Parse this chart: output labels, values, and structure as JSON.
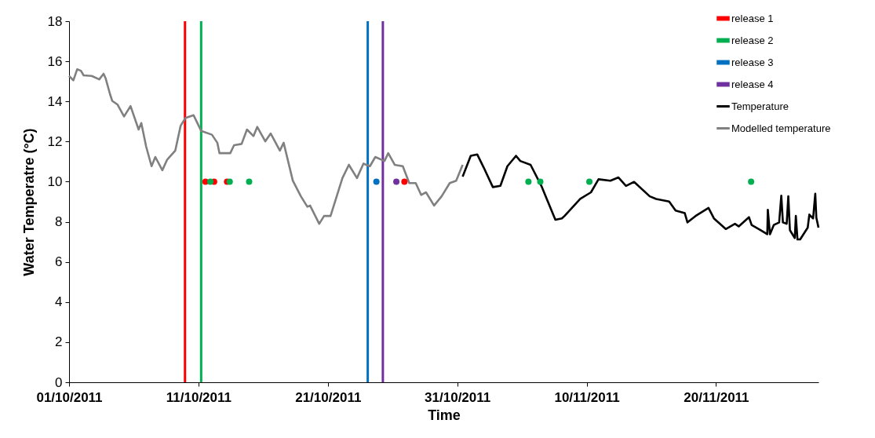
{
  "chart_data": {
    "type": "line",
    "xlabel": "Time",
    "ylabel": "Water Temperatre (°C)",
    "xlim": [
      "2011-10-01",
      "2011-11-27T22:00"
    ],
    "xticks": [
      {
        "value": "2011-10-01",
        "label": "01/10/2011"
      },
      {
        "value": "2011-10-11",
        "label": "11/10/2011"
      },
      {
        "value": "2011-10-21",
        "label": "21/10/2011"
      },
      {
        "value": "2011-10-31",
        "label": "31/10/2011"
      },
      {
        "value": "2011-11-10",
        "label": "10/11/2011"
      },
      {
        "value": "2011-11-20",
        "label": "20/11/2011"
      }
    ],
    "ylim": [
      0,
      18
    ],
    "yticks": [
      0,
      2,
      4,
      6,
      8,
      10,
      12,
      14,
      16,
      18
    ],
    "grid": false,
    "legend": "top right",
    "ref_lines": [
      {
        "axis": "x",
        "value": "2011-10-09T23:00",
        "color": "#ff0000"
      },
      {
        "axis": "x",
        "value": "2011-10-11T05:00",
        "color": "#00b050"
      },
      {
        "axis": "x",
        "value": "2011-10-24T02:00",
        "color": "#0070c0"
      },
      {
        "axis": "x",
        "value": "2011-10-25T06:00",
        "color": "#7030a0"
      }
    ],
    "series": [
      {
        "name": "release 1",
        "type": "scatter",
        "marker": "circle",
        "color": "#ff0000",
        "x": [
          "2011-10-11T13:00",
          "2011-10-12T05:00",
          "2011-10-13T05:00",
          "2011-10-26T22:00"
        ],
        "values": [
          10,
          10,
          10,
          10
        ]
      },
      {
        "name": "release 2",
        "type": "scatter",
        "marker": "circle",
        "color": "#00b050",
        "x": [
          "2011-10-11T22:00",
          "2011-10-13T10:00",
          "2011-10-14T22:00",
          "2011-11-05T12:00",
          "2011-11-06T10:00",
          "2011-11-10T05:00",
          "2011-11-22T17:00"
        ],
        "values": [
          10,
          10,
          10,
          10,
          10,
          10,
          10
        ]
      },
      {
        "name": "release 3",
        "type": "scatter",
        "marker": "circle",
        "color": "#0070c0",
        "x": [
          "2011-10-24T18:00"
        ],
        "values": [
          10
        ]
      },
      {
        "name": "release 4",
        "type": "scatter",
        "marker": "circle",
        "color": "#7030a0",
        "x": [
          "2011-10-26T07:00"
        ],
        "values": [
          10
        ]
      },
      {
        "name": "Temperature",
        "type": "line",
        "color": "#000000",
        "x": [
          "2011-10-31T10:00",
          "2011-11-01T01:00",
          "2011-11-01T13:00",
          "2011-11-02T01:00",
          "2011-11-02T18:00",
          "2011-11-03T08:00",
          "2011-11-03T21:00",
          "2011-11-04T13:00",
          "2011-11-04T21:00",
          "2011-11-05T16:00",
          "2011-11-06T12:00",
          "2011-11-07T00:00",
          "2011-11-07T14:00",
          "2011-11-08T02:00",
          "2011-11-08T07:00",
          "2011-11-09T12:00",
          "2011-11-10T08:00",
          "2011-11-10T22:00",
          "2011-11-11T20:00",
          "2011-11-12T11:00",
          "2011-11-13T01:00",
          "2011-11-13T16:00",
          "2011-11-14T21:00",
          "2011-11-15T09:00",
          "2011-11-16T09:00",
          "2011-11-16T21:00",
          "2011-11-17T14:00",
          "2011-11-17T19:00",
          "2011-11-18T10:00",
          "2011-11-19T10:00",
          "2011-11-19T20:00",
          "2011-11-20T18:00",
          "2011-11-21T11:00",
          "2011-11-21T18:00",
          "2011-11-22T13:00",
          "2011-11-22T18:00",
          "2011-11-23T11:00",
          "2011-11-23T23:00",
          "2011-11-24T00:00",
          "2011-11-24T04:00",
          "2011-11-24T11:00",
          "2011-11-24T21:00",
          "2011-11-25T01:00",
          "2011-11-25T04:00",
          "2011-11-25T11:00",
          "2011-11-25T14:00",
          "2011-11-25T17:00",
          "2011-11-26T02:00",
          "2011-11-26T04:00",
          "2011-11-26T07:00",
          "2011-11-26T12:00",
          "2011-11-27T02:00",
          "2011-11-27T05:00",
          "2011-11-27T12:00",
          "2011-11-27T16:00",
          "2011-11-27T18:00",
          "2011-11-27T22:00"
        ],
        "values": [
          10.25,
          11.29,
          11.36,
          10.71,
          9.73,
          9.79,
          10.77,
          11.29,
          11.03,
          10.84,
          9.79,
          9.01,
          8.1,
          8.17,
          8.29,
          9.14,
          9.47,
          10.12,
          10.05,
          10.21,
          9.79,
          9.99,
          9.27,
          9.14,
          9.01,
          8.56,
          8.43,
          7.97,
          8.29,
          8.69,
          8.17,
          7.64,
          7.9,
          7.77,
          8.23,
          7.84,
          7.58,
          7.38,
          8.6,
          7.38,
          7.84,
          7.97,
          9.3,
          7.97,
          7.9,
          9.27,
          7.58,
          7.19,
          8.29,
          7.12,
          7.12,
          7.71,
          8.36,
          8.17,
          9.4,
          8.21,
          7.71
        ]
      },
      {
        "name": "Modelled temperature",
        "type": "line",
        "color": "#808080",
        "x": [
          "2011-10-01T00:00",
          "2011-10-01T08:00",
          "2011-10-01T15:00",
          "2011-10-01T22:00",
          "2011-10-02T03:00",
          "2011-10-02T18:00",
          "2011-10-03T08:00",
          "2011-10-03T16:00",
          "2011-10-03T20:00",
          "2011-10-04T04:00",
          "2011-10-04T08:00",
          "2011-10-04T18:00",
          "2011-10-05T06:00",
          "2011-10-05T18:00",
          "2011-10-06T09:00",
          "2011-10-06T14:00",
          "2011-10-06T23:00",
          "2011-10-07T09:00",
          "2011-10-07T16:00",
          "2011-10-08T05:00",
          "2011-10-08T14:00",
          "2011-10-09T05:00",
          "2011-10-09T15:00",
          "2011-10-10T00:00",
          "2011-10-10T15:00",
          "2011-10-11T05:00",
          "2011-10-12T01:00",
          "2011-10-12T11:00",
          "2011-10-12T15:00",
          "2011-10-13T11:00",
          "2011-10-13T18:00",
          "2011-10-14T08:00",
          "2011-10-14T18:00",
          "2011-10-15T06:00",
          "2011-10-15T13:00",
          "2011-10-16T04:00",
          "2011-10-16T14:00",
          "2011-10-17T07:00",
          "2011-10-17T14:00",
          "2011-10-18T07:00",
          "2011-10-18T22:00",
          "2011-10-19T10:00",
          "2011-10-19T15:00",
          "2011-10-20T08:00",
          "2011-10-20T17:00",
          "2011-10-21T05:00",
          "2011-10-22T03:00",
          "2011-10-22T15:00",
          "2011-10-23T06:00",
          "2011-10-23T18:00",
          "2011-10-24T06:00",
          "2011-10-24T16:00",
          "2011-10-25T09:00",
          "2011-10-25T16:00",
          "2011-10-26T04:00",
          "2011-10-26T19:00",
          "2011-10-27T07:00",
          "2011-10-27T19:00",
          "2011-10-28T05:00",
          "2011-10-28T14:00",
          "2011-10-29T05:00",
          "2011-10-29T19:00",
          "2011-10-30T10:00",
          "2011-10-30T22:00",
          "2011-10-31T10:00"
        ],
        "values": [
          15.27,
          15.05,
          15.6,
          15.53,
          15.3,
          15.27,
          15.1,
          15.38,
          15.14,
          14.36,
          14.03,
          13.84,
          13.25,
          13.77,
          12.6,
          12.92,
          11.75,
          10.77,
          11.23,
          10.57,
          11.1,
          11.55,
          12.79,
          13.18,
          13.31,
          12.53,
          12.34,
          11.94,
          11.42,
          11.42,
          11.82,
          11.88,
          12.6,
          12.27,
          12.73,
          12.01,
          12.4,
          11.55,
          11.94,
          10.05,
          9.27,
          8.75,
          8.81,
          7.9,
          8.29,
          8.29,
          10.18,
          10.84,
          10.18,
          10.9,
          10.77,
          11.23,
          11.03,
          11.42,
          10.84,
          10.77,
          9.93,
          9.93,
          9.34,
          9.47,
          8.81,
          9.27,
          9.93,
          10.05,
          10.84
        ]
      }
    ]
  }
}
